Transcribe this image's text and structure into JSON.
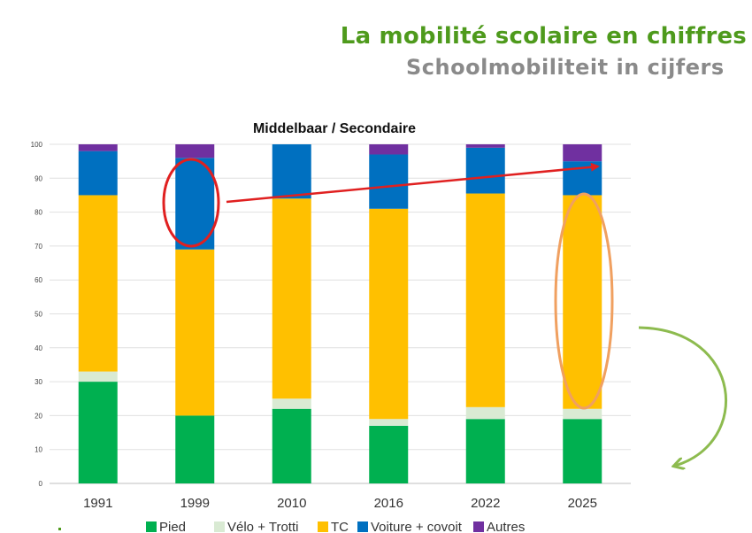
{
  "header": {
    "title_fr": "La mobilité scolaire en chiffres",
    "title_nl": "Schoolmobiliteit in cijfers"
  },
  "chart_data": {
    "type": "bar",
    "stacked": true,
    "title": "Middelbaar / Secondaire",
    "categories": [
      "1991",
      "1999",
      "2010",
      "2016",
      "2022",
      "2025"
    ],
    "series": [
      {
        "name": "Pied",
        "color": "#00b050",
        "values": [
          30,
          20,
          22,
          17,
          19,
          19
        ]
      },
      {
        "name": "Vélo + Trotti",
        "color": "#d9ead3",
        "values": [
          3,
          0,
          3,
          2,
          3.5,
          3
        ]
      },
      {
        "name": "TC",
        "color": "#ffc000",
        "values": [
          52,
          49,
          59,
          62,
          63,
          63
        ]
      },
      {
        "name": "Voiture + covoit",
        "color": "#0070c0",
        "values": [
          13,
          27,
          16,
          16,
          13.5,
          10
        ]
      },
      {
        "name": "Autres",
        "color": "#7030a0",
        "values": [
          2,
          4,
          0,
          3,
          1,
          5
        ]
      }
    ],
    "yticks": [
      0,
      10,
      20,
      30,
      40,
      50,
      60,
      70,
      80,
      90,
      100
    ],
    "ylim": [
      0,
      100
    ],
    "grid": true,
    "legend": "bottom"
  }
}
